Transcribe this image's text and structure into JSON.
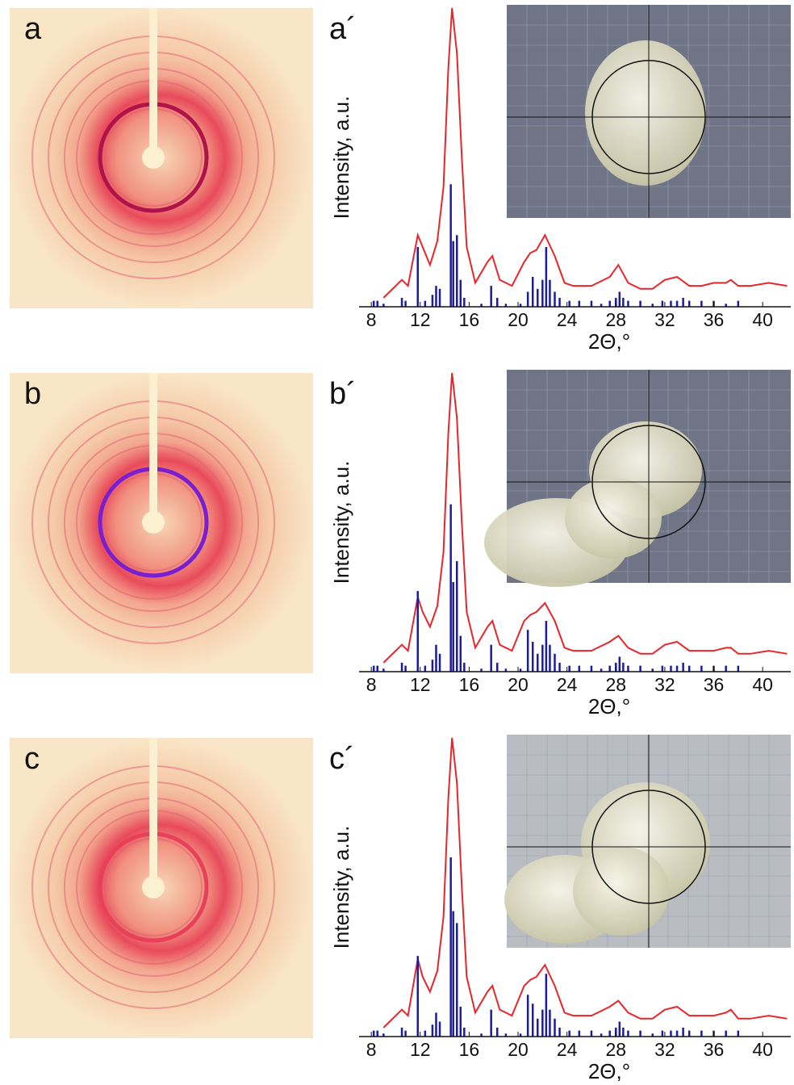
{
  "chart_data": [
    {
      "type": "line",
      "panel_label": "a",
      "title": "a´",
      "xlabel": "2Θ,°",
      "ylabel": "Intensity, a.u.",
      "xlim": [
        7,
        42.3
      ],
      "xticks": [
        8,
        12,
        16,
        20,
        24,
        28,
        32,
        36,
        40
      ],
      "ylim": [
        0,
        100
      ],
      "series": [
        {
          "color": "#e8262a",
          "x": [
            9,
            10.5,
            11,
            11.8,
            12.2,
            12.8,
            13.4,
            13.9,
            14.3,
            14.6,
            15,
            15.4,
            15.8,
            16.5,
            17.5,
            17.9,
            18.5,
            19.5,
            20.5,
            21,
            21.5,
            22.2,
            23,
            23.8,
            24.5,
            26,
            27.5,
            28.2,
            29,
            30,
            31,
            32,
            33,
            34,
            35,
            36,
            37,
            37.4,
            38,
            39,
            40.5,
            42
          ],
          "values": [
            3,
            9,
            7,
            24,
            20,
            14,
            22,
            40,
            80,
            100,
            85,
            50,
            20,
            8,
            15,
            17,
            9,
            7,
            15,
            18,
            19,
            24,
            17,
            8,
            7,
            7,
            10,
            14,
            8,
            6,
            6,
            9,
            10,
            7,
            7,
            8,
            8,
            9,
            7,
            7,
            8,
            7
          ]
        },
        {
          "color": "#1c1c9c",
          "type": "stick",
          "x": [
            8.2,
            8.5,
            9,
            10.5,
            10.8,
            11.8,
            12.4,
            13,
            13.3,
            13.6,
            14.5,
            14.7,
            15,
            15.3,
            15.6,
            17,
            17.8,
            18.3,
            19,
            20.2,
            20.8,
            21.2,
            21.6,
            22,
            22.3,
            22.6,
            23,
            23.4,
            24.2,
            25,
            26,
            26.8,
            27.5,
            28,
            28.3,
            28.6,
            29,
            30,
            31,
            31.8,
            32.5,
            33,
            33.5,
            34,
            35,
            36,
            37,
            38
          ],
          "values": [
            2,
            2,
            1,
            3,
            2,
            20,
            2,
            4,
            7,
            6,
            41,
            22,
            24,
            9,
            3,
            1,
            7,
            3,
            1,
            1,
            5,
            10,
            6,
            9,
            20,
            9,
            5,
            3,
            2,
            2,
            2,
            1,
            2,
            3,
            5,
            3,
            2,
            2,
            1,
            2,
            2,
            2,
            3,
            2,
            2,
            2,
            1,
            2
          ]
        }
      ]
    },
    {
      "type": "line",
      "panel_label": "b",
      "title": "b´",
      "xlabel": "2Θ,°",
      "ylabel": "Intensity, a.u.",
      "xlim": [
        7,
        42.3
      ],
      "xticks": [
        8,
        12,
        16,
        20,
        24,
        28,
        32,
        36,
        40
      ],
      "ylim": [
        0,
        100
      ],
      "series": [
        {
          "color": "#e8262a",
          "x": [
            9,
            10.5,
            11,
            11.8,
            12.2,
            12.8,
            13.4,
            13.9,
            14.3,
            14.6,
            15,
            15.4,
            15.8,
            16.5,
            17.5,
            17.9,
            18.5,
            19.5,
            20.5,
            21,
            21.5,
            22.2,
            23,
            23.8,
            24.5,
            26,
            27.5,
            28.2,
            29,
            30,
            31,
            32,
            33,
            34,
            35,
            36,
            37,
            37.4,
            38,
            39,
            40.5,
            42
          ],
          "values": [
            3,
            9,
            7,
            25,
            20,
            15,
            22,
            40,
            80,
            100,
            85,
            50,
            20,
            8,
            15,
            17,
            9,
            7,
            17,
            19,
            20,
            23,
            17,
            8,
            7,
            7,
            10,
            12,
            8,
            6,
            6,
            9,
            10,
            7,
            7,
            7,
            8,
            8,
            6,
            6,
            7,
            6
          ]
        },
        {
          "color": "#1c1c9c",
          "type": "stick",
          "x": [
            8.2,
            8.5,
            9,
            10.5,
            10.8,
            11.8,
            12.4,
            13,
            13.3,
            13.6,
            14.5,
            14.7,
            15,
            15.3,
            15.6,
            17,
            17.8,
            18.3,
            19,
            20.2,
            20.8,
            21.2,
            21.6,
            22,
            22.3,
            22.6,
            23,
            23.4,
            24.2,
            25,
            26,
            26.8,
            27.5,
            28,
            28.3,
            28.6,
            29,
            30,
            31,
            31.8,
            32.5,
            33,
            33.5,
            34,
            35,
            36,
            37,
            38
          ],
          "values": [
            2,
            2,
            1,
            3,
            2,
            27,
            2,
            4,
            9,
            6,
            56,
            30,
            37,
            12,
            3,
            1,
            9,
            3,
            1,
            1,
            14,
            10,
            6,
            9,
            17,
            9,
            6,
            3,
            2,
            2,
            2,
            1,
            2,
            3,
            5,
            3,
            2,
            2,
            1,
            2,
            2,
            2,
            3,
            2,
            2,
            2,
            2,
            2
          ]
        }
      ]
    },
    {
      "type": "line",
      "panel_label": "c",
      "title": "c´",
      "xlabel": "2Θ,°",
      "ylabel": "Intensity, a.u.",
      "xlim": [
        7,
        42.3
      ],
      "xticks": [
        8,
        12,
        16,
        20,
        24,
        28,
        32,
        36,
        40
      ],
      "ylim": [
        0,
        100
      ],
      "series": [
        {
          "color": "#e8262a",
          "x": [
            9,
            10.5,
            11,
            11.8,
            12.2,
            12.8,
            13.4,
            13.9,
            14.3,
            14.6,
            15,
            15.4,
            15.8,
            16.5,
            17.5,
            17.9,
            18.5,
            19.5,
            20.5,
            21,
            21.5,
            22.2,
            23,
            23.8,
            24.5,
            26,
            27.5,
            28.2,
            29,
            30,
            31,
            32,
            33,
            34,
            35,
            36,
            37,
            37.4,
            38,
            39,
            40.5,
            42
          ],
          "values": [
            3,
            9,
            7,
            26,
            20,
            15,
            22,
            40,
            80,
            100,
            85,
            50,
            20,
            8,
            15,
            17,
            9,
            7,
            17,
            19,
            20,
            24,
            17,
            8,
            7,
            7,
            10,
            12,
            8,
            6,
            6,
            9,
            10,
            7,
            7,
            7,
            8,
            9,
            6,
            6,
            7,
            6
          ]
        },
        {
          "color": "#1c1c9c",
          "type": "stick",
          "x": [
            8.2,
            8.5,
            9,
            10.5,
            10.8,
            11.8,
            12.4,
            13,
            13.3,
            13.6,
            14.5,
            14.7,
            15,
            15.3,
            15.6,
            17,
            17.8,
            18.3,
            19,
            20.2,
            20.8,
            21.2,
            21.6,
            22,
            22.3,
            22.6,
            23,
            23.4,
            24.2,
            25,
            26,
            26.8,
            27.5,
            28,
            28.3,
            28.6,
            29,
            30,
            31,
            31.8,
            32.5,
            33,
            33.5,
            34,
            35,
            36,
            37,
            38
          ],
          "values": [
            2,
            2,
            1,
            3,
            2,
            27,
            2,
            4,
            8,
            5,
            60,
            42,
            38,
            10,
            3,
            1,
            9,
            3,
            1,
            1,
            14,
            11,
            6,
            9,
            21,
            9,
            6,
            3,
            2,
            2,
            2,
            1,
            2,
            3,
            5,
            3,
            2,
            2,
            1,
            2,
            2,
            2,
            3,
            2,
            2,
            2,
            2,
            2
          ]
        }
      ]
    }
  ]
}
